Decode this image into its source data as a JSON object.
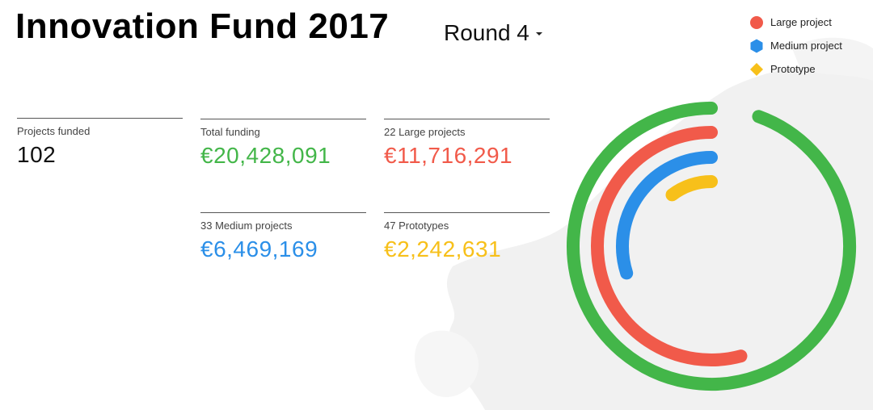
{
  "title": "Innovation Fund 2017",
  "round_selector": {
    "label": "Round 4"
  },
  "legend": [
    {
      "label": "Large project",
      "color": "#f15a4a",
      "icon": "circle-icon"
    },
    {
      "label": "Medium project",
      "color": "#2b8fe8",
      "icon": "hexagon-icon"
    },
    {
      "label": "Prototype",
      "color": "#f7c01a",
      "icon": "diamond-icon"
    }
  ],
  "stats": {
    "projects_funded": {
      "label": "Projects funded",
      "value": "102"
    },
    "total_funding": {
      "label": "Total funding",
      "value": "€20,428,091",
      "color": "#43b649"
    },
    "large": {
      "label": "22 Large projects",
      "value": "€11,716,291",
      "color": "#f15a4a"
    },
    "medium": {
      "label": "33 Medium projects",
      "value": "€6,469,169",
      "color": "#2b8fe8"
    },
    "prototype": {
      "label": "47 Prototypes",
      "value": "€2,242,631",
      "color": "#f7c01a"
    }
  },
  "chart_data": {
    "type": "radial-bar",
    "series": [
      {
        "name": "Total funding",
        "value": 20428091,
        "color": "#43b649"
      },
      {
        "name": "Large project",
        "value": 11716291,
        "color": "#f15a4a"
      },
      {
        "name": "Medium project",
        "value": 6469169,
        "color": "#2b8fe8"
      },
      {
        "name": "Prototype",
        "value": 2242631,
        "color": "#f7c01a"
      }
    ]
  }
}
